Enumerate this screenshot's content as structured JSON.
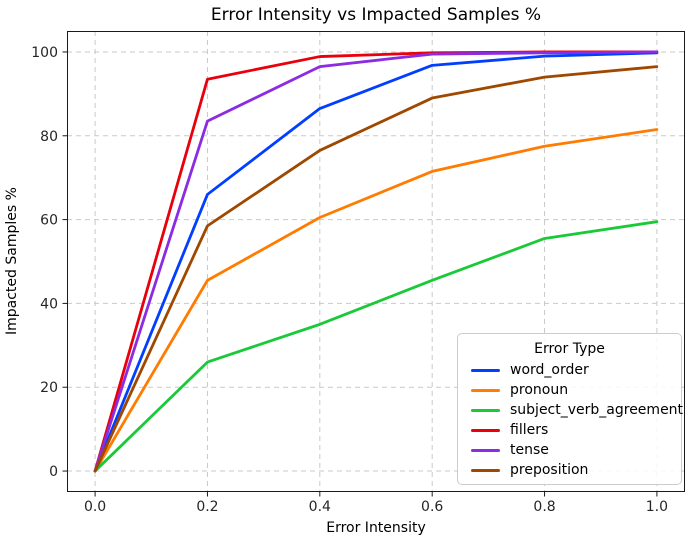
{
  "chart_data": {
    "type": "line",
    "title": "Error Intensity vs Impacted Samples %",
    "xlabel": "Error Intensity",
    "ylabel": "Impacted Samples %",
    "legend_title": "Error Type",
    "legend_position": "lower right",
    "grid": true,
    "grid_style": "dashed",
    "x": [
      0.0,
      0.2,
      0.4,
      0.6,
      0.8,
      1.0
    ],
    "xlim": [
      -0.05,
      1.05
    ],
    "ylim": [
      -5,
      105
    ],
    "xticks": [
      0.0,
      0.2,
      0.4,
      0.6,
      0.8,
      1.0
    ],
    "yticks": [
      0,
      20,
      40,
      60,
      80,
      100
    ],
    "xtick_labels": [
      "0.0",
      "0.2",
      "0.4",
      "0.6",
      "0.8",
      "1.0"
    ],
    "ytick_labels": [
      "0",
      "20",
      "40",
      "60",
      "80",
      "100"
    ],
    "series": [
      {
        "name": "word_order",
        "color": "#023eff",
        "values": [
          0,
          66.0,
          86.5,
          96.8,
          99.0,
          99.8
        ]
      },
      {
        "name": "pronoun",
        "color": "#ff7c00",
        "values": [
          0,
          45.5,
          60.5,
          71.5,
          77.5,
          81.5
        ]
      },
      {
        "name": "subject_verb_agreement",
        "color": "#1ac938",
        "values": [
          0,
          26.0,
          35.0,
          45.5,
          55.5,
          59.5
        ]
      },
      {
        "name": "fillers",
        "color": "#e8000b",
        "values": [
          0,
          93.5,
          98.9,
          99.8,
          100.0,
          100.0
        ]
      },
      {
        "name": "tense",
        "color": "#8b2be2",
        "values": [
          0,
          83.5,
          96.5,
          99.5,
          99.8,
          100.0
        ]
      },
      {
        "name": "preposition",
        "color": "#9f4800",
        "values": [
          0,
          58.5,
          76.5,
          89.0,
          94.0,
          96.5
        ]
      }
    ],
    "colors": {
      "grid": "#c9c9c9",
      "spine": "#1a1a1a",
      "tick_label": "#262626",
      "background": "#ffffff"
    }
  }
}
